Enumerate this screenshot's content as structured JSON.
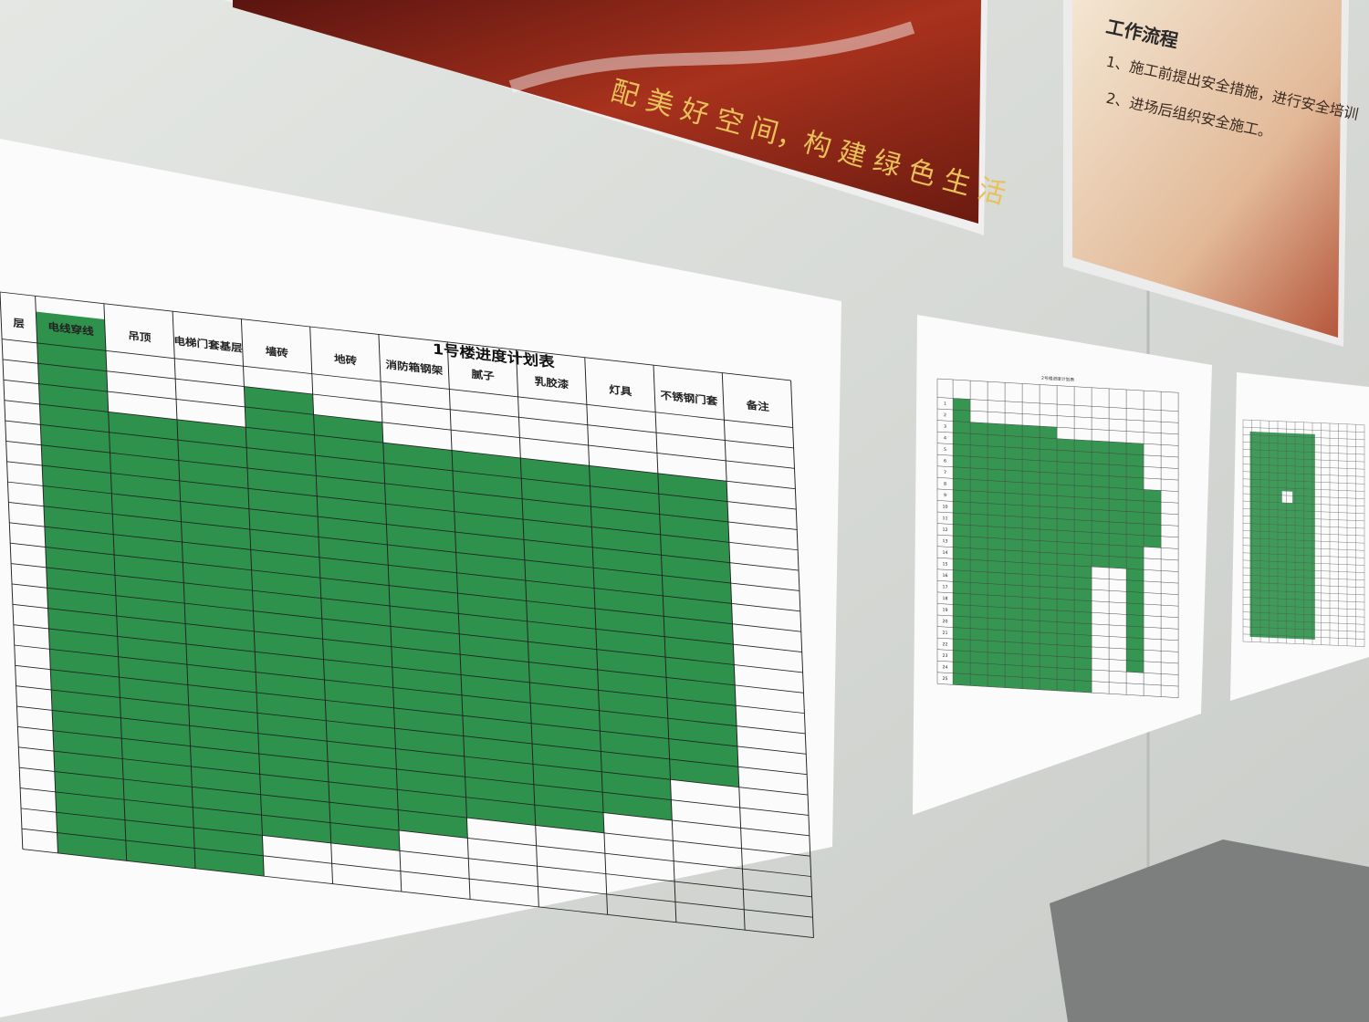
{
  "poster_left": {
    "slogan": "配 美 好 空 间，构 建 绿 色 生 活"
  },
  "poster_right": {
    "heading": "工作流程",
    "steps": [
      "1、施工前提出安全措施，进行安全培训",
      "2、进场后组织安全施工。"
    ]
  },
  "sheet_1": {
    "title": "1号楼进度计划表",
    "columns": [
      "层",
      "电线穿线",
      "吊顶",
      "电梯门套基层",
      "墙砖",
      "地砖",
      "消防箱钢架",
      "腻子",
      "乳胶漆",
      "灯具",
      "不锈钢门套",
      "备注"
    ]
  },
  "sheet_2": {
    "title": "2号楼进度计划表",
    "rows": [
      1,
      2,
      3,
      4,
      5,
      6,
      7,
      8,
      9,
      10,
      11,
      12,
      13,
      14,
      15,
      16,
      17,
      18,
      19,
      20,
      21,
      22,
      23,
      24,
      25
    ]
  }
}
